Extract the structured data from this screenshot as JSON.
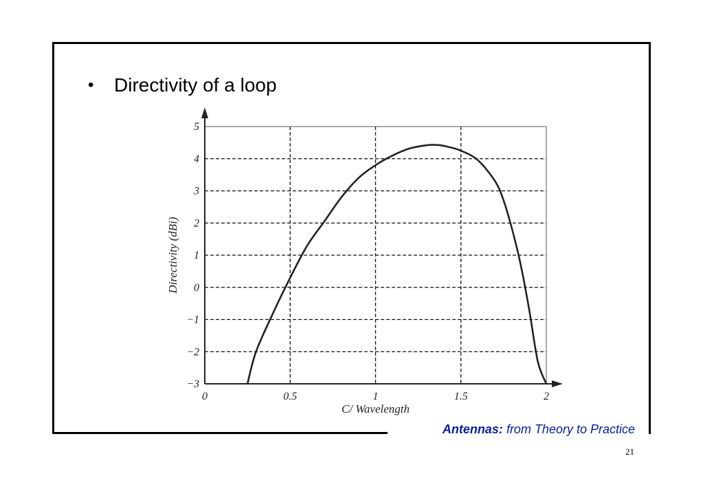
{
  "slide": {
    "bullet_symbol": "•",
    "bullet_text": "Directivity of a loop",
    "citation_bold": "Antennas:",
    "citation_rest": " from Theory to Practice",
    "page_number": "21",
    "accent_color": "#0a1f8f"
  },
  "chart_data": {
    "type": "line",
    "title": "",
    "xlabel": "C/ Wavelength",
    "ylabel": "Directivity (dBi)",
    "xlim": [
      0,
      2
    ],
    "ylim": [
      -3,
      5
    ],
    "x_ticks": [
      0,
      0.5,
      1,
      1.5,
      2
    ],
    "x_tick_labels": [
      "0",
      "0.5",
      "1",
      "1.5",
      "2"
    ],
    "y_ticks": [
      5,
      4,
      3,
      2,
      1,
      0,
      -1,
      -2,
      -3
    ],
    "y_tick_labels": [
      "5",
      "4",
      "3",
      "2",
      "1",
      "0",
      "−1",
      "−2",
      "−3"
    ],
    "grid": true,
    "grid_style": "dashed",
    "series": [
      {
        "color": "#222222",
        "x": [
          0.25,
          0.3,
          0.4,
          0.5,
          0.6,
          0.7,
          0.8,
          0.9,
          1.0,
          1.1,
          1.2,
          1.3,
          1.35,
          1.4,
          1.5,
          1.6,
          1.7,
          1.75,
          1.8,
          1.85,
          1.9,
          1.95,
          2.0
        ],
        "y": [
          -3.0,
          -2.0,
          -0.8,
          0.3,
          1.3,
          2.05,
          2.8,
          3.4,
          3.8,
          4.1,
          4.32,
          4.42,
          4.43,
          4.4,
          4.25,
          3.95,
          3.3,
          2.7,
          1.8,
          0.7,
          -0.7,
          -2.3,
          -3.0
        ]
      }
    ]
  }
}
